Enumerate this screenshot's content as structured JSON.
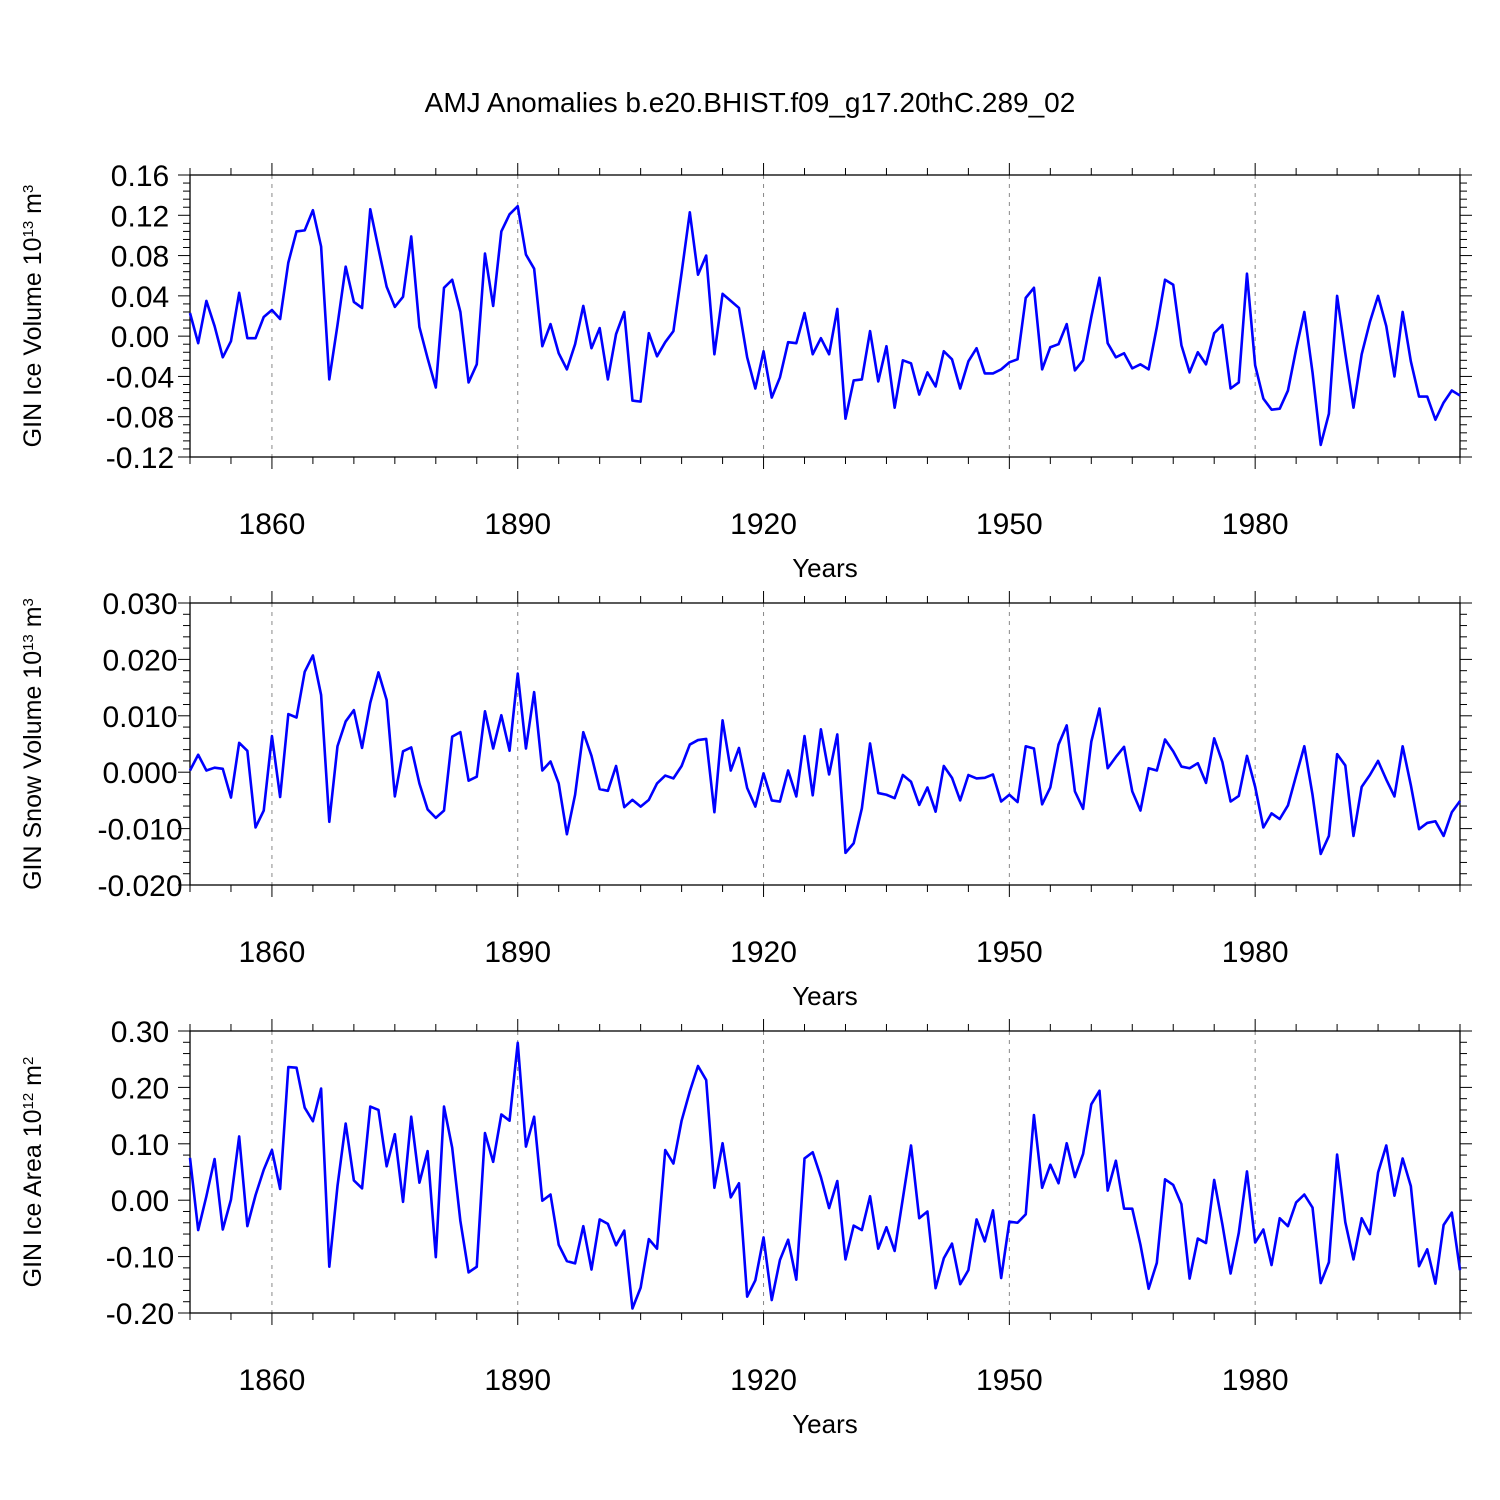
{
  "title": "AMJ Anomalies b.e20.BHIST.f09_g17.20thC.289_02",
  "colors": {
    "series": "#0000ff",
    "axis": "#000000",
    "grid": "#888888"
  },
  "chart_data": [
    {
      "type": "line",
      "ylabel": "GIN Ice Volume",
      "ylabel_unit_base": "10",
      "ylabel_unit_exp": "13",
      "ylabel_unit_suffix": "m",
      "ylabel_unit_suffix_exp": "3",
      "xlabel": "Years",
      "xlim": [
        1850,
        2005
      ],
      "ylim": [
        -0.12,
        0.16
      ],
      "yticks": [
        -0.12,
        -0.08,
        -0.04,
        0.0,
        0.04,
        0.08,
        0.12,
        0.16
      ],
      "yticklabels": [
        "-0.12",
        "-0.08",
        "-0.04",
        "0.00",
        "0.04",
        "0.08",
        "0.12",
        "0.16"
      ],
      "xticks": [
        1860,
        1890,
        1920,
        1950,
        1980
      ],
      "xticklabels": [
        "1860",
        "1890",
        "1920",
        "1950",
        "1980"
      ],
      "x_start": 1850,
      "series": [
        {
          "name": "GIN Ice Volume",
          "values": [
            0.023,
            -0.007,
            0.035,
            0.01,
            -0.021,
            -0.005,
            0.043,
            -0.002,
            -0.002,
            0.019,
            0.026,
            0.017,
            0.073,
            0.104,
            0.105,
            0.125,
            0.089,
            -0.043,
            0.011,
            0.069,
            0.034,
            0.028,
            0.126,
            0.087,
            0.049,
            0.029,
            0.039,
            0.099,
            0.009,
            -0.022,
            -0.051,
            0.048,
            0.056,
            0.024,
            -0.046,
            -0.028,
            0.082,
            0.03,
            0.104,
            0.121,
            0.129,
            0.081,
            0.067,
            -0.01,
            0.012,
            -0.017,
            -0.033,
            -0.008,
            0.03,
            -0.012,
            0.008,
            -0.043,
            0.002,
            0.024,
            -0.064,
            -0.065,
            0.003,
            -0.02,
            -0.006,
            0.005,
            0.063,
            0.123,
            0.061,
            0.08,
            -0.018,
            0.042,
            0.035,
            0.028,
            -0.021,
            -0.052,
            -0.015,
            -0.061,
            -0.041,
            -0.006,
            -0.007,
            0.023,
            -0.018,
            -0.002,
            -0.018,
            0.027,
            -0.082,
            -0.044,
            -0.043,
            0.005,
            -0.045,
            -0.01,
            -0.071,
            -0.024,
            -0.027,
            -0.058,
            -0.036,
            -0.05,
            -0.015,
            -0.023,
            -0.052,
            -0.025,
            -0.012,
            -0.037,
            -0.037,
            -0.033,
            -0.026,
            -0.023,
            0.038,
            0.048,
            -0.033,
            -0.011,
            -0.008,
            0.012,
            -0.034,
            -0.024,
            0.019,
            0.058,
            -0.007,
            -0.021,
            -0.017,
            -0.032,
            -0.028,
            -0.033,
            0.009,
            0.056,
            0.051,
            -0.009,
            -0.036,
            -0.016,
            -0.028,
            0.003,
            0.011,
            -0.052,
            -0.046,
            0.062,
            -0.029,
            -0.062,
            -0.073,
            -0.072,
            -0.054,
            -0.013,
            0.024,
            -0.036,
            -0.108,
            -0.077,
            0.04,
            -0.017,
            -0.071,
            -0.018,
            0.014,
            0.04,
            0.01,
            -0.04,
            0.024,
            -0.025,
            -0.06,
            -0.06,
            -0.083,
            -0.066,
            -0.054,
            -0.059
          ]
        }
      ]
    },
    {
      "type": "line",
      "ylabel": "GIN Snow Volume",
      "ylabel_unit_base": "10",
      "ylabel_unit_exp": "13",
      "ylabel_unit_suffix": "m",
      "ylabel_unit_suffix_exp": "3",
      "xlabel": "Years",
      "xlim": [
        1850,
        2005
      ],
      "ylim": [
        -0.02,
        0.03
      ],
      "yticks": [
        -0.02,
        -0.01,
        0.0,
        0.01,
        0.02,
        0.03
      ],
      "yticklabels": [
        "-0.020",
        "-0.010",
        "0.000",
        "0.010",
        "0.020",
        "0.030"
      ],
      "xticks": [
        1860,
        1890,
        1920,
        1950,
        1980
      ],
      "xticklabels": [
        "1860",
        "1890",
        "1920",
        "1950",
        "1980"
      ],
      "x_start": 1850,
      "series": [
        {
          "name": "GIN Snow Volume",
          "values": [
            0.0003,
            0.0031,
            0.0003,
            0.0008,
            0.0006,
            -0.0045,
            0.0052,
            0.0038,
            -0.0098,
            -0.0068,
            0.0064,
            -0.0044,
            0.0103,
            0.0097,
            0.0178,
            0.0207,
            0.0137,
            -0.0088,
            0.0046,
            0.009,
            0.011,
            0.0043,
            0.0123,
            0.0177,
            0.0128,
            -0.0043,
            0.0037,
            0.0044,
            -0.002,
            -0.0066,
            -0.0081,
            -0.0068,
            0.0063,
            0.0071,
            -0.0015,
            -0.0008,
            0.0108,
            0.0042,
            0.0101,
            0.0038,
            0.0175,
            0.0042,
            0.0142,
            0.0003,
            0.0019,
            -0.002,
            -0.011,
            -0.004,
            0.0071,
            0.0029,
            -0.003,
            -0.0033,
            0.0011,
            -0.0062,
            -0.0049,
            -0.0061,
            -0.0049,
            -0.002,
            -0.0006,
            -0.0011,
            0.0011,
            0.0049,
            0.0057,
            0.0059,
            -0.0071,
            0.0092,
            0.0003,
            0.0043,
            -0.0028,
            -0.0061,
            -0.0002,
            -0.005,
            -0.0052,
            0.0003,
            -0.0043,
            0.0064,
            -0.0041,
            0.0076,
            -0.0004,
            0.0067,
            -0.0143,
            -0.0126,
            -0.0064,
            0.0051,
            -0.0037,
            -0.004,
            -0.0046,
            -0.0005,
            -0.0017,
            -0.0058,
            -0.0027,
            -0.007,
            0.0011,
            -0.001,
            -0.005,
            -0.0005,
            -0.0011,
            -0.001,
            -0.0004,
            -0.0052,
            -0.004,
            -0.0053,
            0.0046,
            0.0042,
            -0.0057,
            -0.0027,
            0.0049,
            0.0083,
            -0.0034,
            -0.0065,
            0.0054,
            0.0113,
            0.0007,
            0.0027,
            0.0045,
            -0.0034,
            -0.0068,
            0.0007,
            0.0003,
            0.0058,
            0.0037,
            0.001,
            0.0007,
            0.0016,
            -0.0019,
            0.006,
            0.0018,
            -0.0052,
            -0.0042,
            0.0029,
            -0.0026,
            -0.0098,
            -0.0073,
            -0.0083,
            -0.0059,
            -0.0006,
            0.0046,
            -0.004,
            -0.0145,
            -0.0113,
            0.0032,
            0.0012,
            -0.0113,
            -0.0026,
            -0.0005,
            0.002,
            -0.0013,
            -0.0043,
            0.0046,
            -0.0023,
            -0.0101,
            -0.009,
            -0.0087,
            -0.0113,
            -0.0071,
            -0.0051
          ]
        }
      ]
    },
    {
      "type": "line",
      "ylabel": "GIN Ice Area",
      "ylabel_unit_base": "10",
      "ylabel_unit_exp": "12",
      "ylabel_unit_suffix": "m",
      "ylabel_unit_suffix_exp": "2",
      "xlabel": "Years",
      "xlim": [
        1850,
        2005
      ],
      "ylim": [
        -0.2,
        0.3
      ],
      "yticks": [
        -0.2,
        -0.1,
        0.0,
        0.1,
        0.2,
        0.3
      ],
      "yticklabels": [
        "-0.20",
        "-0.10",
        "0.00",
        "0.10",
        "0.20",
        "0.30"
      ],
      "xticks": [
        1860,
        1890,
        1920,
        1950,
        1980
      ],
      "xticklabels": [
        "1860",
        "1890",
        "1920",
        "1950",
        "1980"
      ],
      "x_start": 1850,
      "series": [
        {
          "name": "GIN Ice Area",
          "values": [
            0.075,
            -0.053,
            0.007,
            0.073,
            -0.052,
            0.001,
            0.113,
            -0.046,
            0.009,
            0.054,
            0.089,
            0.02,
            0.236,
            0.235,
            0.164,
            0.14,
            0.198,
            -0.118,
            0.025,
            0.136,
            0.035,
            0.021,
            0.166,
            0.16,
            0.06,
            0.117,
            -0.003,
            0.148,
            0.031,
            0.087,
            -0.101,
            0.166,
            0.093,
            -0.037,
            -0.128,
            -0.118,
            0.119,
            0.068,
            0.152,
            0.141,
            0.279,
            0.095,
            0.148,
            -0.001,
            0.01,
            -0.079,
            -0.108,
            -0.112,
            -0.046,
            -0.123,
            -0.034,
            -0.042,
            -0.08,
            -0.054,
            -0.192,
            -0.155,
            -0.069,
            -0.086,
            0.089,
            0.065,
            0.141,
            0.193,
            0.238,
            0.213,
            0.022,
            0.101,
            0.005,
            0.03,
            -0.171,
            -0.142,
            -0.066,
            -0.177,
            -0.106,
            -0.07,
            -0.141,
            0.074,
            0.085,
            0.041,
            -0.014,
            0.034,
            -0.105,
            -0.045,
            -0.053,
            0.007,
            -0.086,
            -0.048,
            -0.09,
            0.003,
            0.097,
            -0.032,
            -0.02,
            -0.156,
            -0.103,
            -0.077,
            -0.149,
            -0.124,
            -0.034,
            -0.073,
            -0.018,
            -0.138,
            -0.038,
            -0.04,
            -0.025,
            0.151,
            0.022,
            0.063,
            0.03,
            0.101,
            0.041,
            0.082,
            0.17,
            0.194,
            0.017,
            0.07,
            -0.015,
            -0.015,
            -0.079,
            -0.157,
            -0.111,
            0.037,
            0.027,
            -0.007,
            -0.139,
            -0.068,
            -0.076,
            0.036,
            -0.043,
            -0.13,
            -0.058,
            0.051,
            -0.075,
            -0.052,
            -0.115,
            -0.032,
            -0.046,
            -0.004,
            0.01,
            -0.013,
            -0.147,
            -0.11,
            0.081,
            -0.039,
            -0.105,
            -0.032,
            -0.06,
            0.049,
            0.097,
            0.008,
            0.074,
            0.025,
            -0.117,
            -0.087,
            -0.148,
            -0.044,
            -0.022,
            -0.124
          ]
        }
      ]
    }
  ]
}
